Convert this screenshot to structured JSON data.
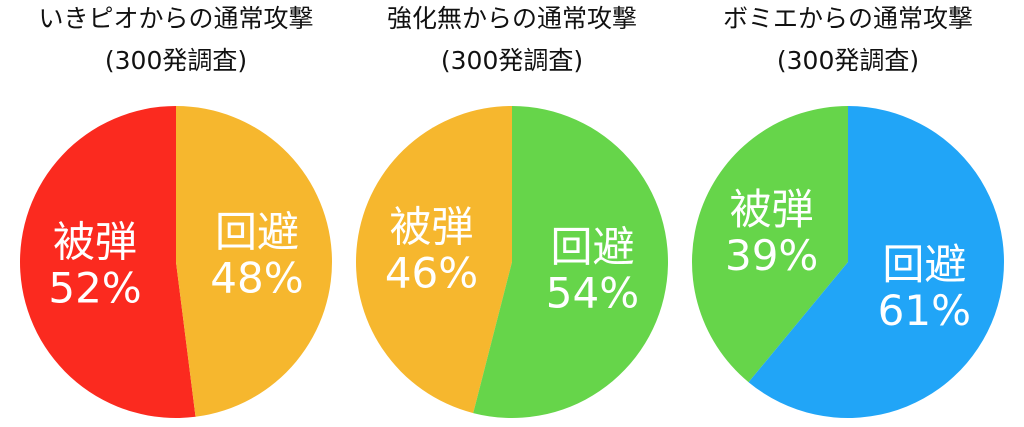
{
  "chart_data": [
    {
      "type": "pie",
      "title": "いきピオからの通常攻撃",
      "subtitle": "(300発調査)",
      "categories": [
        "被弾",
        "回避"
      ],
      "values": [
        52,
        48
      ],
      "value_labels": [
        "52%",
        "48%"
      ],
      "colors": [
        "#fb2a1f",
        "#f6b72e"
      ]
    },
    {
      "type": "pie",
      "title": "強化無からの通常攻撃",
      "subtitle": "(300発調査)",
      "categories": [
        "被弾",
        "回避"
      ],
      "values": [
        46,
        54
      ],
      "value_labels": [
        "46%",
        "54%"
      ],
      "colors": [
        "#f6b72e",
        "#66d54a"
      ]
    },
    {
      "type": "pie",
      "title": "ボミエからの通常攻撃",
      "subtitle": "(300発調査)",
      "categories": [
        "被弾",
        "回避"
      ],
      "values": [
        39,
        61
      ],
      "value_labels": [
        "39%",
        "61%"
      ],
      "colors": [
        "#66d54a",
        "#21a5f7"
      ]
    }
  ]
}
